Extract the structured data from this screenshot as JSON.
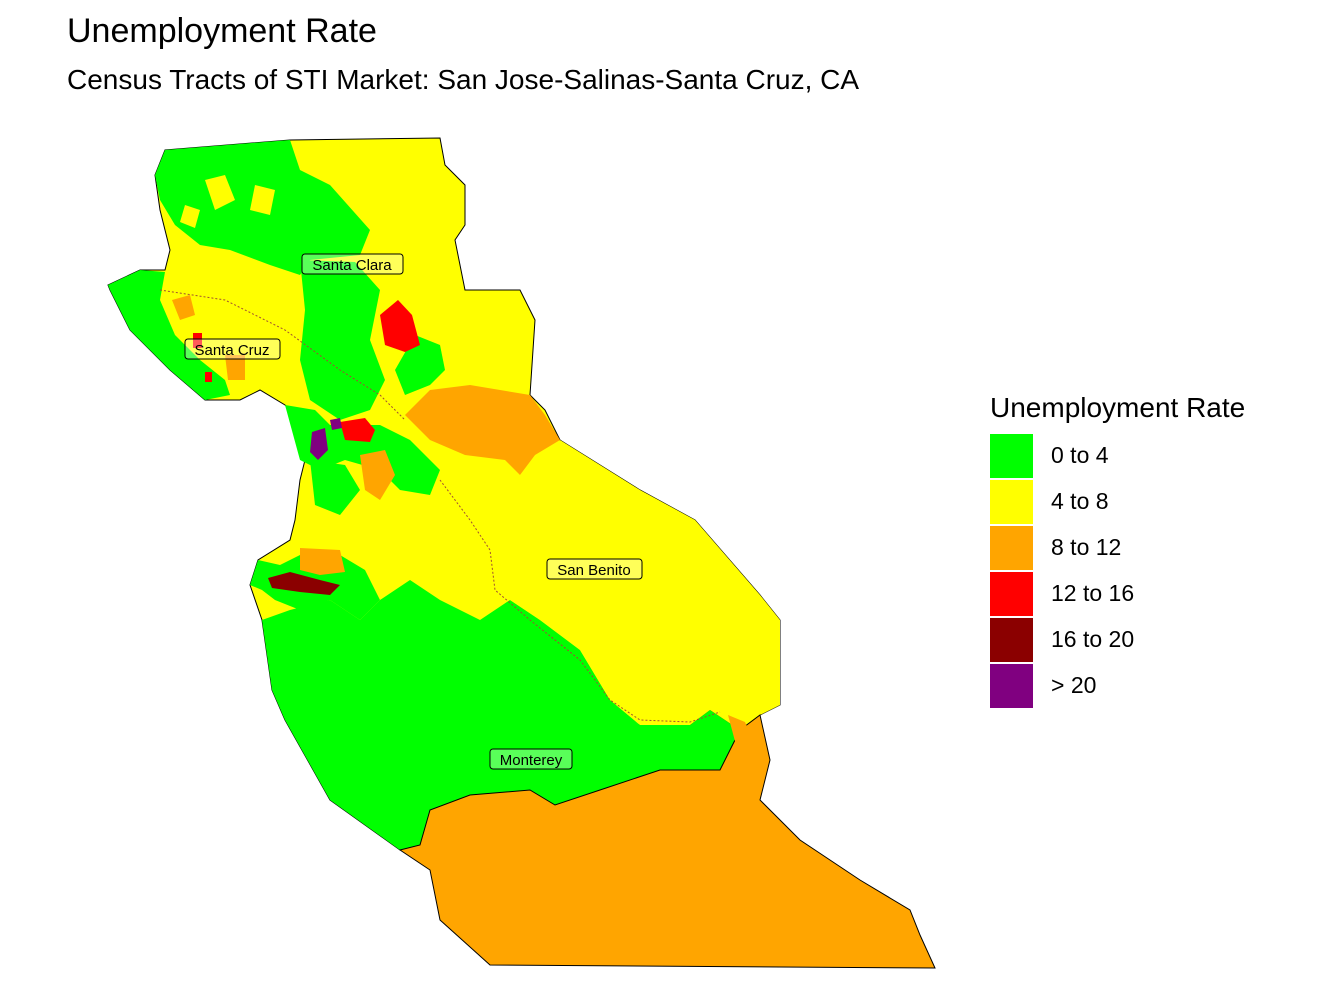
{
  "title": "Unemployment Rate",
  "subtitle": "Census Tracts of STI Market: San Jose-Salinas-Santa Cruz, CA",
  "counties": [
    {
      "name": "Santa Clara"
    },
    {
      "name": "Santa Cruz"
    },
    {
      "name": "San Benito"
    },
    {
      "name": "Monterey"
    }
  ],
  "legend": {
    "title": "Unemployment Rate",
    "items": [
      {
        "label": "0 to 4",
        "color": "#00ff00"
      },
      {
        "label": "4 to 8",
        "color": "#ffff00"
      },
      {
        "label": "8 to 12",
        "color": "#ffa500"
      },
      {
        "label": "12 to 16",
        "color": "#ff0000"
      },
      {
        "label": "16 to 20",
        "color": "#8b0000"
      },
      {
        "label": "> 20",
        "color": "#800080"
      }
    ]
  },
  "colors": {
    "green": "#00ff00",
    "yellow": "#ffff00",
    "orange": "#ffa500",
    "red": "#ff0000",
    "darkred": "#8b0000",
    "purple": "#800080",
    "border": "#a05030"
  }
}
